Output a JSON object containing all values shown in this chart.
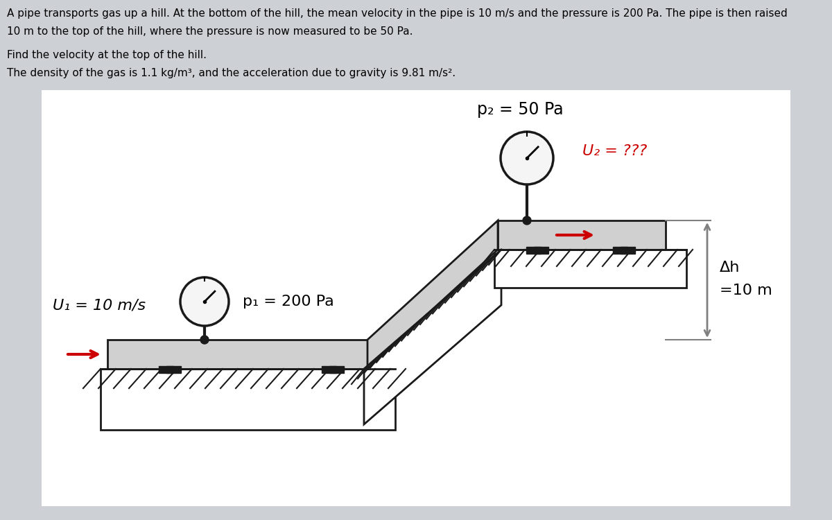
{
  "bg_color": "#cdd0d4",
  "fig_bg_color": "#cdd0d4",
  "text_line1": "A pipe transports gas up a hill. At the bottom of the hill, the mean velocity in the pipe is 10 m/s and the pressure is 200 Pa. The pipe is then raised",
  "text_line2": "10 m to the top of the hill, where the pressure is now measured to be 50 Pa.",
  "text_line3": "Find the velocity at the top of the hill.",
  "text_line4": "The density of the gas is 1.1 kg/m³, and the acceleration due to gravity is 9.81 m/s².",
  "label_p2": "p₂ = 50 Pa",
  "label_u2": "U₂ = ???",
  "label_p1": "p₁ = 200 Pa",
  "label_u1": "U₁ = 10 m/s",
  "label_dh": "Δh",
  "label_dh2": "=10 m",
  "pipe_color": "#d0d0d0",
  "pipe_edge_color": "#1a1a1a",
  "hatch_color": "#1a1a1a",
  "ground_color": "#f0f0f0",
  "arrow_color": "#cc0000",
  "dim_arrow_color": "#808080",
  "gauge_face_color": "#f5f5f5",
  "gauge_edge_color": "#1a1a1a",
  "post_color": "#1a1a1a",
  "lw_pipe": 2.0,
  "lw_hatch": 1.5,
  "lw_post": 2.0
}
